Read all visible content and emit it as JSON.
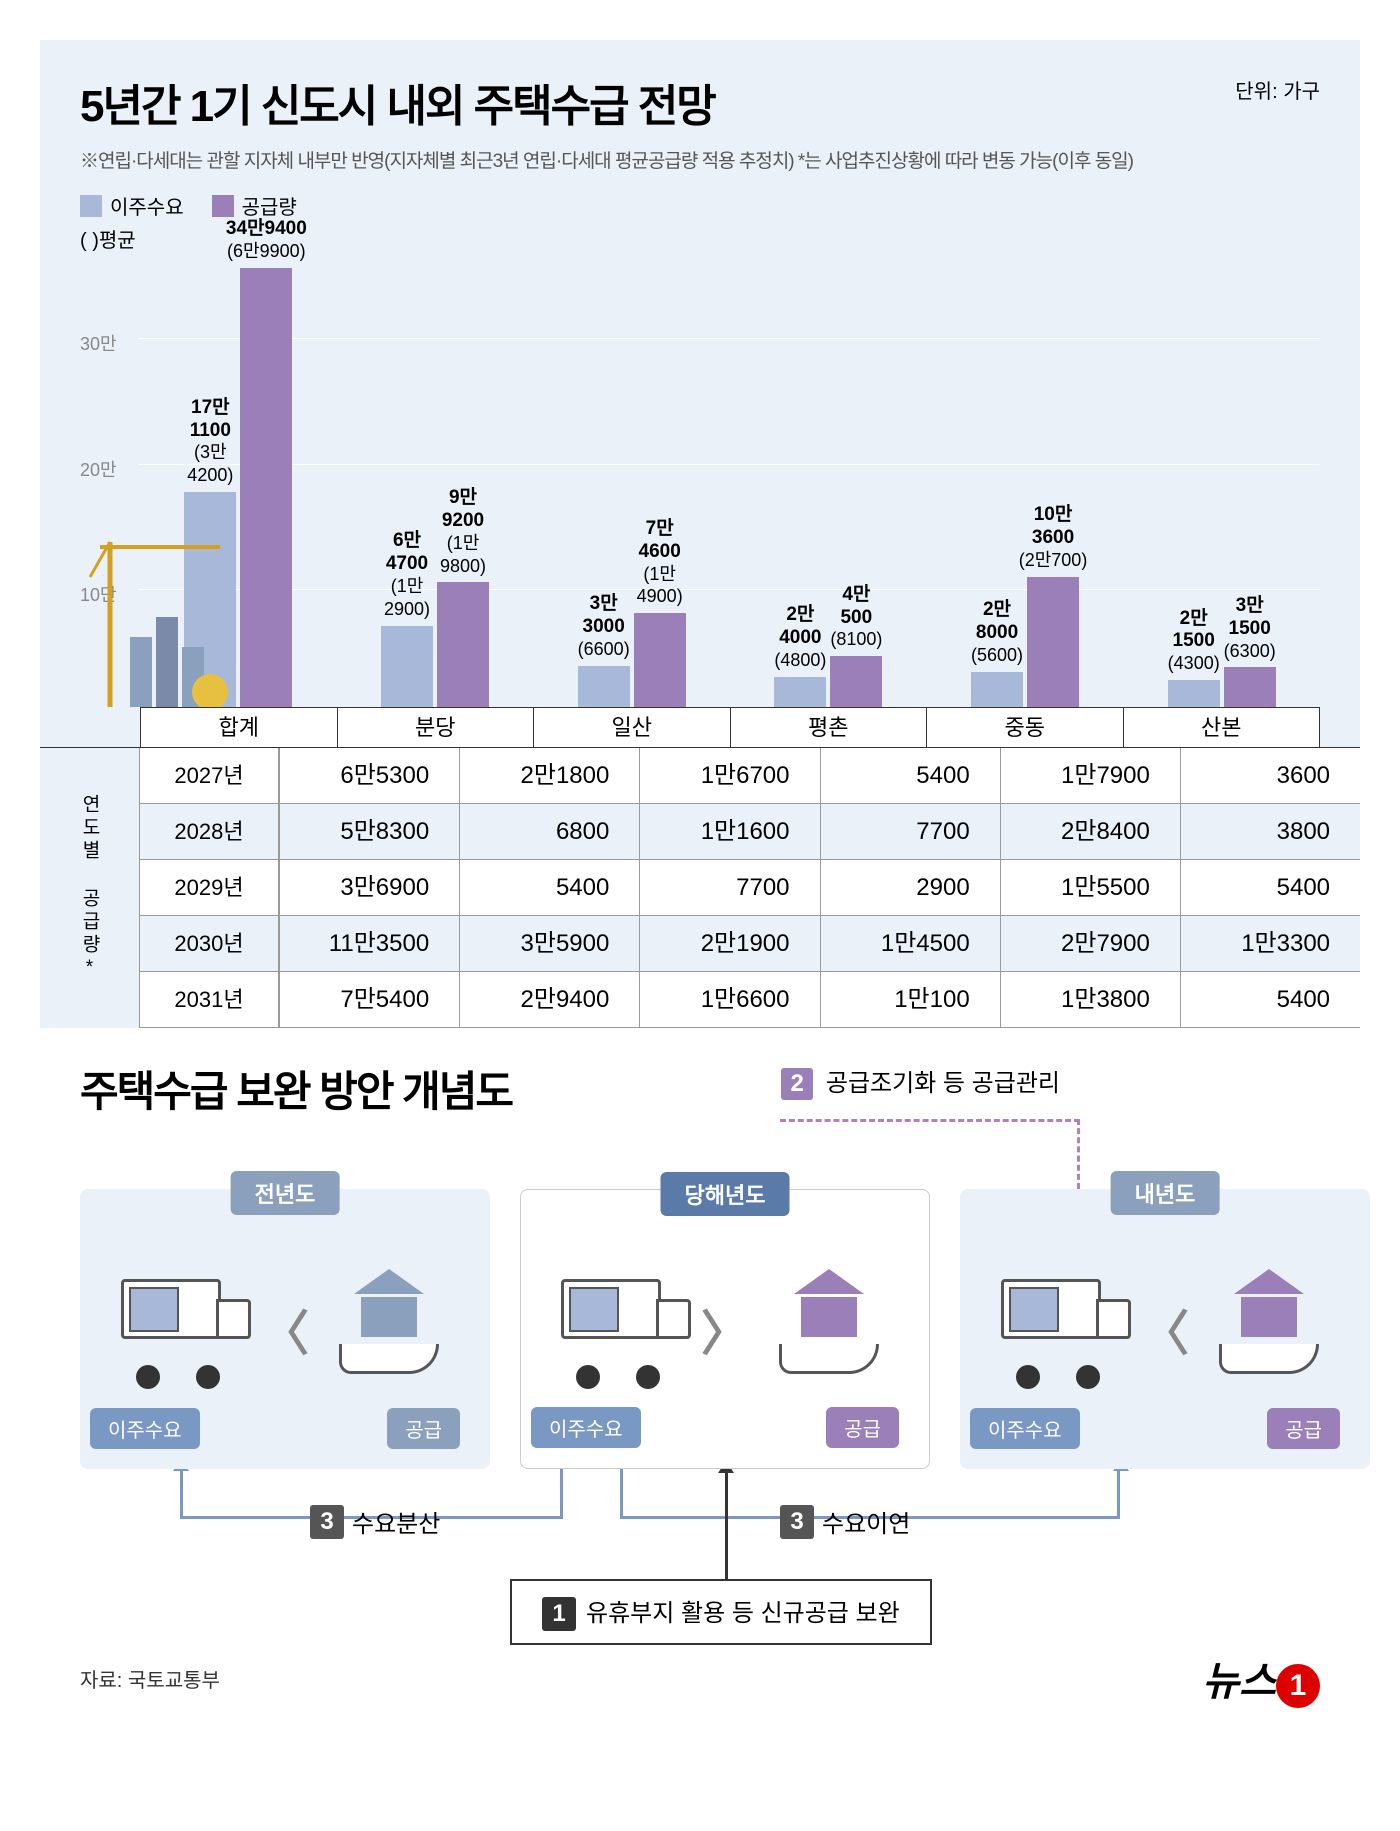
{
  "section1": {
    "title": "5년간 1기 신도시 내외 주택수급 전망",
    "unit": "단위: 가구",
    "note": "※연립·다세대는 관할 지자체 내부만 반영(지자체별 최근3년 연립·다세대 평균공급량 적용 추정치) *는 사업추진상황에 따라 변동 가능(이후 동일)",
    "legend": {
      "demand": {
        "label": "이주수요",
        "color": "#a8b8d8"
      },
      "supply": {
        "label": "공급량",
        "color": "#9a7fb8"
      },
      "avg": "( )평균"
    },
    "chart": {
      "type": "bar",
      "ymax": 350000,
      "yticks": [
        {
          "v": 100000,
          "l": "10만"
        },
        {
          "v": 200000,
          "l": "20만"
        },
        {
          "v": 300000,
          "l": "30만"
        }
      ],
      "bg": "#eaf1f8",
      "grid_color": "#ffffff",
      "categories": [
        "합계",
        "분당",
        "일산",
        "평촌",
        "중동",
        "산본"
      ],
      "bars": [
        {
          "demand": 171100,
          "d_lbl": "17만\n1100",
          "d_sub": "(3만\n4200)",
          "supply": 349400,
          "s_lbl": "34만9400",
          "s_sub": "(6만9900)"
        },
        {
          "demand": 64700,
          "d_lbl": "6만\n4700",
          "d_sub": "(1만\n2900)",
          "supply": 99200,
          "s_lbl": "9만\n9200",
          "s_sub": "(1만\n9800)"
        },
        {
          "demand": 33000,
          "d_lbl": "3만\n3000",
          "d_sub": "(6600)",
          "supply": 74600,
          "s_lbl": "7만\n4600",
          "s_sub": "(1만\n4900)"
        },
        {
          "demand": 24000,
          "d_lbl": "2만\n4000",
          "d_sub": "(4800)",
          "supply": 40500,
          "s_lbl": "4만\n500",
          "s_sub": "(8100)"
        },
        {
          "demand": 28000,
          "d_lbl": "2만\n8000",
          "d_sub": "(5600)",
          "supply": 103600,
          "s_lbl": "10만\n3600",
          "s_sub": "(2만700)"
        },
        {
          "demand": 21500,
          "d_lbl": "2만\n1500",
          "d_sub": "(4300)",
          "supply": 31500,
          "s_lbl": "3만\n1500",
          "s_sub": "(6300)"
        }
      ]
    },
    "table": {
      "side_label": "연도별 공급량*",
      "years": [
        "2027년",
        "2028년",
        "2029년",
        "2030년",
        "2031년"
      ],
      "rows": [
        [
          "6만5300",
          "2만1800",
          "1만6700",
          "5400",
          "1만7900",
          "3600"
        ],
        [
          "5만8300",
          "6800",
          "1만1600",
          "7700",
          "2만8400",
          "3800"
        ],
        [
          "3만6900",
          "5400",
          "7700",
          "2900",
          "1만5500",
          "5400"
        ],
        [
          "11만3500",
          "3만5900",
          "2만1900",
          "1만4500",
          "2만7900",
          "1만3300"
        ],
        [
          "7만5400",
          "2만9400",
          "1만6600",
          "1만100",
          "1만3800",
          "5400"
        ]
      ]
    }
  },
  "section2": {
    "title": "주택수급 보완 방안 개념도",
    "step2": "공급조기화 등 공급관리",
    "years": [
      {
        "tab": "전년도",
        "tab_bg": "#8aa0bd",
        "cmp": "〈",
        "demand_color": "#a8b8d8",
        "supply_color": "#8aa0bd"
      },
      {
        "tab": "당해년도",
        "tab_bg": "#5a7aa8",
        "cmp": "〉",
        "demand_color": "#a8b8d8",
        "supply_color": "#9a7fb8"
      },
      {
        "tab": "내년도",
        "tab_bg": "#8aa0bd",
        "cmp": "〈",
        "demand_color": "#a8b8d8",
        "supply_color": "#9a7fb8"
      }
    ],
    "pill_demand": "이주수요",
    "pill_supply": "공급",
    "step3a": "수요분산",
    "step3b": "수요이연",
    "step1": "유휴부지 활용 등 신규공급 보완"
  },
  "footer": {
    "source": "자료: 국토교통부",
    "logo": "뉴스"
  }
}
